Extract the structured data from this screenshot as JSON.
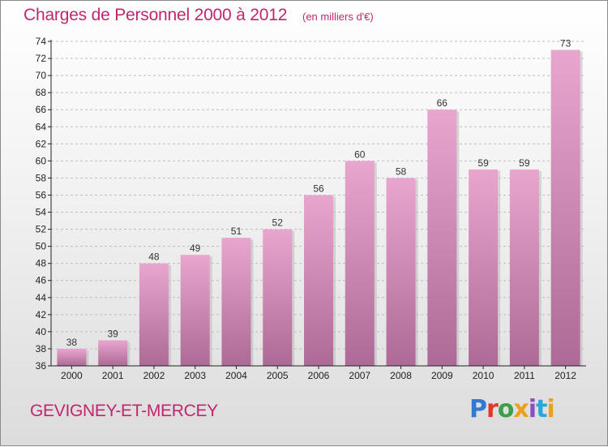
{
  "title": "Charges de Personnel 2000 à 2012",
  "subtitle": "(en milliers d'€)",
  "commune": "GEVIGNEY-ET-MERCEY",
  "logo": {
    "letters": [
      "P",
      "r",
      "o",
      "x",
      "i",
      "t",
      "i"
    ],
    "full_text": "Proxiti"
  },
  "colors": {
    "title": "#c0266e",
    "bar_top": "#e8a6cf",
    "bar_bottom": "#ad6a96",
    "axis": "#222222",
    "grid": "#bdbdbd"
  },
  "chart_data": {
    "type": "bar",
    "title": "Charges de Personnel 2000 à 2012",
    "subtitle": "(en milliers d'€)",
    "categories": [
      "2000",
      "2001",
      "2002",
      "2003",
      "2004",
      "2005",
      "2006",
      "2007",
      "2008",
      "2009",
      "2010",
      "2011",
      "2012"
    ],
    "values": [
      38,
      39,
      48,
      49,
      51,
      52,
      56,
      60,
      58,
      66,
      59,
      59,
      73
    ],
    "ylim": [
      36,
      74
    ],
    "yticks": [
      36,
      38,
      40,
      42,
      44,
      46,
      48,
      50,
      52,
      54,
      56,
      58,
      60,
      62,
      64,
      66,
      68,
      70,
      72,
      74
    ],
    "grid": true,
    "xlabel": "",
    "ylabel": ""
  }
}
